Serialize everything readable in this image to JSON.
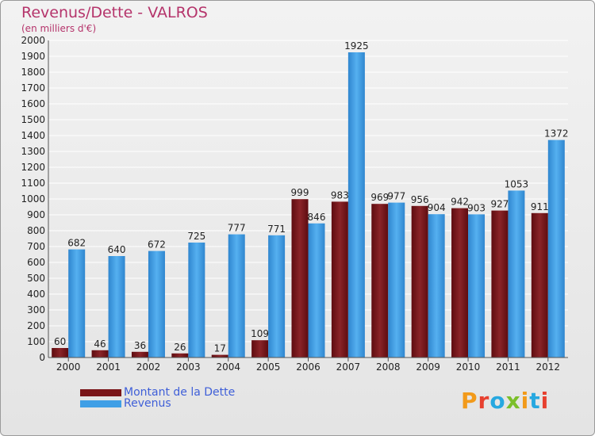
{
  "title": "Revenus/Dette - VALROS",
  "subtitle": "(en milliers d'€)",
  "logo": "Proxiti",
  "colors": {
    "dette": "#7a1518",
    "revenus": "#3f9fe6",
    "title": "#b5346b",
    "legend_text": "#3f5fd8"
  },
  "legend": [
    {
      "label": "Montant de la Dette",
      "color": "#7a1518"
    },
    {
      "label": "Revenus",
      "color": "#3f9fe6"
    }
  ],
  "chart_data": {
    "type": "bar",
    "title": "Revenus/Dette - VALROS",
    "subtitle": "(en milliers d'€)",
    "xlabel": "",
    "ylabel": "",
    "categories": [
      "2000",
      "2001",
      "2002",
      "2003",
      "2004",
      "2005",
      "2006",
      "2007",
      "2008",
      "2009",
      "2010",
      "2011",
      "2012"
    ],
    "series": [
      {
        "name": "Montant de la Dette",
        "values": [
          60,
          46,
          36,
          26,
          17,
          109,
          999,
          983,
          969,
          956,
          942,
          927,
          911
        ]
      },
      {
        "name": "Revenus",
        "values": [
          682,
          640,
          672,
          725,
          777,
          771,
          846,
          1925,
          977,
          904,
          903,
          1053,
          1372
        ]
      }
    ],
    "value_labels": [
      [
        "60",
        "46",
        "36",
        "26",
        "17",
        "109",
        "999",
        "983",
        "969",
        "956",
        "942",
        "927",
        "911"
      ],
      [
        "682",
        "640",
        "672",
        "725",
        "777",
        "771",
        "846",
        "1925",
        "977",
        "904",
        "903",
        "1053",
        "1372"
      ]
    ],
    "yticks": [
      "0",
      "100",
      "200",
      "300",
      "400",
      "500",
      "600",
      "700",
      "800",
      "900",
      "1000",
      "1100",
      "1200",
      "1300",
      "1400",
      "1500",
      "1600",
      "1700",
      "1800",
      "1900",
      "2000"
    ],
    "ylim": [
      0,
      2000
    ],
    "grid": true,
    "legend_position": "bottom-left"
  }
}
